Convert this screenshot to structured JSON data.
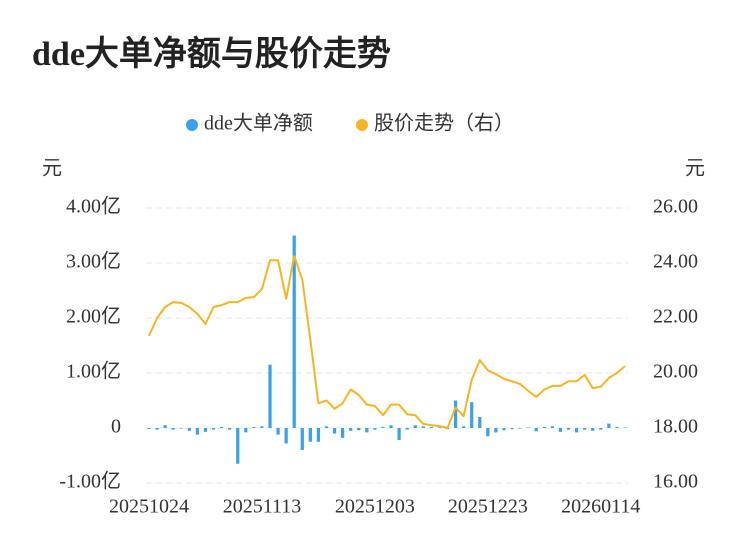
{
  "chart_data": {
    "type": "bar-line",
    "title": "dde大单净额与股价走势",
    "y_label": "元",
    "y2_label": "元",
    "categories": [
      "20251024",
      null,
      null,
      null,
      null,
      null,
      null,
      null,
      null,
      null,
      null,
      null,
      null,
      null,
      "20251113",
      null,
      null,
      null,
      null,
      null,
      null,
      null,
      null,
      null,
      null,
      null,
      null,
      null,
      "20251203",
      null,
      null,
      null,
      null,
      null,
      null,
      null,
      null,
      null,
      null,
      null,
      null,
      null,
      "20251223",
      null,
      null,
      null,
      null,
      null,
      null,
      null,
      null,
      null,
      null,
      null,
      null,
      null,
      "20260114",
      null,
      null,
      null
    ],
    "series": [
      {
        "name": "dde大单净额",
        "color": "#3aa0ea",
        "type": "bar",
        "values": [
          -0.02,
          -0.03,
          0.05,
          -0.03,
          -0.01,
          -0.05,
          -0.12,
          -0.07,
          -0.03,
          0.02,
          -0.03,
          -0.65,
          -0.08,
          0.02,
          0.03,
          1.15,
          -0.12,
          -0.28,
          3.5,
          -0.4,
          -0.25,
          -0.25,
          0.03,
          -0.1,
          -0.18,
          -0.05,
          -0.04,
          -0.08,
          -0.03,
          0.02,
          0.05,
          -0.22,
          -0.03,
          0.05,
          0.03,
          0.02,
          0.01,
          -0.02,
          0.5,
          0.03,
          0.47,
          0.2,
          -0.15,
          -0.08,
          -0.04,
          -0.02,
          -0.01,
          0.01,
          -0.06,
          0.02,
          0.03,
          -0.07,
          -0.03,
          -0.08,
          -0.03,
          -0.05,
          -0.03,
          0.08,
          0.02,
          0.01
        ]
      },
      {
        "name": "股价走势（右）",
        "color": "#f5b422",
        "type": "line",
        "axis": "y2",
        "values": [
          21.35,
          22.0,
          22.4,
          22.58,
          22.55,
          22.4,
          22.15,
          21.78,
          22.4,
          22.47,
          22.58,
          22.58,
          22.73,
          22.76,
          23.05,
          24.1,
          24.1,
          22.7,
          24.25,
          23.4,
          21.2,
          18.9,
          19.0,
          18.7,
          18.9,
          19.4,
          19.2,
          18.85,
          18.8,
          18.47,
          18.85,
          18.85,
          18.5,
          18.47,
          18.15,
          18.1,
          18.07,
          18.0,
          18.75,
          18.43,
          19.75,
          20.47,
          20.1,
          19.96,
          19.78,
          19.7,
          19.6,
          19.35,
          19.13,
          19.4,
          19.53,
          19.53,
          19.7,
          19.7,
          19.93,
          19.45,
          19.5,
          19.82,
          20.0,
          20.25
        ]
      }
    ],
    "ylim": [
      -1,
      4
    ],
    "yticks": [
      {
        "value": -1,
        "label": "-1.00亿"
      },
      0,
      {
        "value": 1,
        "label": "1.00亿"
      },
      {
        "value": 2,
        "label": "2.00亿"
      },
      {
        "value": 3,
        "label": "3.00亿"
      },
      {
        "value": 4,
        "label": "4.00亿"
      }
    ],
    "y2lim": [
      16,
      26
    ],
    "y2ticks": [
      {
        "value": 16,
        "label": "16.00"
      },
      {
        "value": 18,
        "label": "18.00"
      },
      {
        "value": 20,
        "label": "20.00"
      },
      {
        "value": 22,
        "label": "22.00"
      },
      {
        "value": 24,
        "label": "24.00"
      },
      {
        "value": 26,
        "label": "26.00"
      }
    ],
    "grid": true,
    "legend": "top"
  }
}
